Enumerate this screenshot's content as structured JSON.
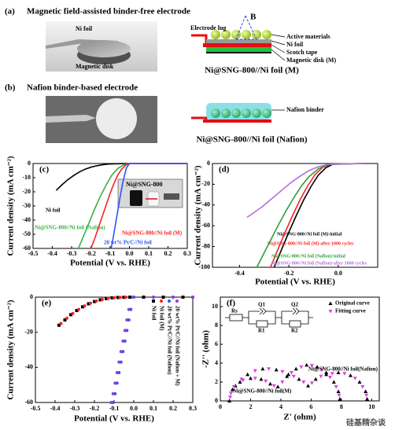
{
  "panel_a": {
    "label": "(a)",
    "title": "Magnetic field-assisted binder-free electrode",
    "photo_labels": [
      "Ni foil",
      "Magnetic disk"
    ],
    "diagram_labels": [
      "Electrode lug",
      "B",
      "Active materials",
      "Ni foil",
      "Scotch tape",
      "Magnetic disk (M)"
    ],
    "caption": "Ni@SNG-800//Ni foil (M)"
  },
  "panel_b": {
    "label": "(b)",
    "title": "Nafion binder-based electrode",
    "diagram_labels": [
      "Nafion binder"
    ],
    "caption": "Ni@SNG-800//Ni foil (Nafion)"
  },
  "watermark": "硅基精杂谈",
  "chart_data": [
    {
      "type": "line",
      "panel": "(c)",
      "x_label": "Potential (V vs. RHE)",
      "y_label": "Current density (mA cm⁻²)",
      "inset_label": "Ni@SNG-800",
      "xlim": [
        -0.5,
        0.3
      ],
      "xticks": [
        -0.5,
        -0.4,
        -0.3,
        -0.2,
        -0.1,
        {
          "value": 0,
          "label": "0.0"
        },
        0.1,
        0.2,
        0.3
      ],
      "ylim": [
        -60,
        0
      ],
      "yticks": [
        -60,
        -50,
        -40,
        -30,
        -20,
        -10,
        0
      ],
      "series": [
        {
          "name": "Ni foil",
          "color": "#000000",
          "x": [
            -0.38,
            -0.35,
            -0.32,
            -0.29,
            -0.26,
            -0.23,
            -0.2,
            -0.17,
            -0.14,
            -0.11,
            -0.08,
            -0.05,
            0,
            0.3
          ],
          "values": [
            -19,
            -15,
            -11.5,
            -8.5,
            -6,
            -4,
            -2.6,
            -1.6,
            -0.9,
            -0.4,
            -0.2,
            -0.1,
            0,
            0
          ]
        },
        {
          "name": "Ni@SNG-800//Ni foil (Nafion)",
          "color": "#3cb043",
          "x": [
            -0.265,
            -0.24,
            -0.21,
            -0.18,
            -0.15,
            -0.12,
            -0.09,
            -0.06,
            -0.03,
            0,
            0.3
          ],
          "values": [
            -60,
            -52,
            -42,
            -32,
            -23,
            -15,
            -8,
            -3.5,
            -1,
            0,
            0
          ]
        },
        {
          "name": "Ni@SNG-800//Ni foil (M)",
          "color": "#ff2020",
          "x": [
            -0.2,
            -0.18,
            -0.16,
            -0.14,
            -0.12,
            -0.1,
            -0.08,
            -0.06,
            -0.04,
            -0.02,
            0,
            0.3
          ],
          "values": [
            -60,
            -53,
            -45,
            -37,
            -29,
            -21,
            -14,
            -8,
            -4,
            -1.2,
            0,
            0
          ]
        },
        {
          "name": "20 wt% Pt/C//Ni foil",
          "color": "#3050ff",
          "x": [
            -0.095,
            -0.085,
            -0.075,
            -0.065,
            -0.055,
            -0.045,
            -0.035,
            -0.025,
            -0.015,
            0,
            0.3
          ],
          "values": [
            -60,
            -53,
            -45,
            -37,
            -29,
            -21,
            -14,
            -8,
            -3,
            0,
            0
          ]
        }
      ]
    },
    {
      "type": "line",
      "panel": "(d)",
      "x_label": "Potential (V vs. RHE)",
      "y_label": "Current density (mA cm⁻²)",
      "xlim": [
        -0.51,
        0.16
      ],
      "xticks": [
        -0.4,
        -0.2,
        {
          "value": 0,
          "label": "0.0"
        }
      ],
      "ylim": [
        -100,
        0
      ],
      "yticks": [
        -100,
        -80,
        -60,
        -40,
        -20,
        0
      ],
      "series": [
        {
          "name": "Ni@SNG-800//Ni foil (M)-initial",
          "color": "#000000",
          "x": [
            -0.26,
            -0.23,
            -0.2,
            -0.17,
            -0.14,
            -0.11,
            -0.08,
            -0.05,
            -0.02,
            0.1
          ],
          "values": [
            -100,
            -83,
            -66,
            -50,
            -35,
            -22,
            -11,
            -4,
            -0.5,
            0
          ]
        },
        {
          "name": "Ni@SNG-800//Ni foil (M)-after 1000 cycles",
          "color": "#ff2020",
          "x": [
            -0.275,
            -0.245,
            -0.215,
            -0.185,
            -0.155,
            -0.125,
            -0.095,
            -0.065,
            -0.03,
            0.1
          ],
          "values": [
            -100,
            -83,
            -66,
            -50,
            -35,
            -22,
            -11,
            -4,
            -0.5,
            0
          ]
        },
        {
          "name": "Ni@SNG-800//Ni foil (Nafion)-initial",
          "color": "#2e9e3e",
          "x": [
            -0.33,
            -0.3,
            -0.27,
            -0.24,
            -0.21,
            -0.18,
            -0.15,
            -0.12,
            -0.08,
            -0.04,
            0.1
          ],
          "values": [
            -100,
            -86,
            -72,
            -58,
            -45,
            -33,
            -22,
            -13,
            -5,
            -1,
            0
          ]
        },
        {
          "name": "Ni@SNG-800//Ni foil (Nafion)-after 1000 cycles",
          "color": "#b070e0",
          "x": [
            -0.37,
            -0.34,
            -0.31,
            -0.28,
            -0.25,
            -0.22,
            -0.19,
            -0.16,
            -0.12,
            -0.08,
            -0.04,
            0.1
          ],
          "values": [
            -52,
            -47,
            -42,
            -36,
            -30,
            -24,
            -18,
            -13,
            -7,
            -3,
            -0.8,
            0
          ]
        }
      ]
    },
    {
      "type": "scatter",
      "panel": "(e)",
      "x_label": "Potential (V vs. RHE)",
      "y_label": "Current density (mA cm⁻²)",
      "xlim": [
        -0.5,
        0.3
      ],
      "xticks": [
        -0.5,
        -0.4,
        -0.3,
        -0.2,
        -0.1,
        {
          "value": 0,
          "label": "0.0"
        },
        0.1,
        0.2,
        0.3
      ],
      "ylim": [
        -60,
        0
      ],
      "yticks": [
        -60,
        -40,
        -20,
        0
      ],
      "series": [
        {
          "name": "Ni foil",
          "color": "#000000",
          "marker": "square",
          "x": [
            -0.38,
            -0.35,
            -0.32,
            -0.29,
            -0.26,
            -0.23,
            -0.2,
            -0.17,
            -0.14,
            -0.11,
            -0.08,
            -0.05,
            -0.02,
            0.05,
            0.15,
            0.25
          ],
          "values": [
            -16,
            -13,
            -10,
            -7.6,
            -5.5,
            -3.8,
            -2.5,
            -1.5,
            -0.8,
            -0.4,
            -0.2,
            -0.1,
            0,
            0,
            0,
            0
          ]
        },
        {
          "name": "Ni foil (M)",
          "color": "#ff2020",
          "marker": "circle",
          "x": [
            -0.37,
            -0.34,
            -0.31,
            -0.28,
            -0.25,
            -0.22,
            -0.19,
            -0.16,
            -0.13,
            -0.1,
            -0.07,
            -0.04,
            0,
            0.1,
            0.2,
            0.3
          ],
          "values": [
            -15,
            -12,
            -9.3,
            -7,
            -5,
            -3.4,
            -2.2,
            -1.3,
            -0.7,
            -0.35,
            -0.15,
            -0.05,
            0,
            0,
            0,
            0
          ]
        },
        {
          "name": "20 wt% Pt/C//Ni foil (Nafion)",
          "color": "#3050ff",
          "marker": "circle",
          "x": [
            -0.105,
            -0.095,
            -0.085,
            -0.075,
            -0.065,
            -0.055,
            -0.045,
            -0.035,
            -0.025,
            -0.015,
            0,
            0.1,
            0.2,
            0.3
          ],
          "values": [
            -60,
            -55,
            -49,
            -43,
            -37,
            -31,
            -25,
            -19,
            -13,
            -7,
            0,
            0,
            0,
            0
          ]
        },
        {
          "name": "20 wt% Pt/C//Ni foil (Nafion + M)",
          "color": "#9040d0",
          "marker": "circle",
          "x": [
            -0.115,
            -0.105,
            -0.095,
            -0.085,
            -0.075,
            -0.065,
            -0.055,
            -0.045,
            -0.035,
            -0.025,
            -0.005,
            0.1,
            0.2,
            0.3
          ],
          "values": [
            -60,
            -55,
            -49,
            -43,
            -37,
            -31,
            -25,
            -19,
            -13,
            -7,
            0,
            0,
            0,
            0
          ]
        }
      ]
    },
    {
      "type": "scatter",
      "panel": "(f)",
      "x_label": "Z' (ohm)",
      "y_label": "-Z'' (ohm)",
      "annotations": [
        "Ni@SNG-800//Ni foil(Nafion)",
        "Ni@SNG-800//Ni foil(M)"
      ],
      "circuit_labels": [
        "Rs",
        "Q1",
        "Q2",
        "R1",
        "R2"
      ],
      "xlim": [
        0,
        10.5
      ],
      "xticks": [
        0,
        2,
        4,
        6,
        8,
        10
      ],
      "ylim": [
        0,
        11
      ],
      "yticks": [
        0,
        2,
        4,
        6,
        8,
        10
      ],
      "series": [
        {
          "name": "Original curve",
          "color": "#000000",
          "marker": "triangle",
          "x": [
            0.6,
            0.8,
            1.3,
            2.0,
            2.7,
            3.3,
            3.8,
            4.4,
            5.0,
            5.7,
            6.4,
            7.0,
            7.5,
            7.8,
            7.9,
            0.6,
            1.0,
            1.8,
            2.8,
            3.7,
            4.5,
            5.2,
            5.8,
            6.3,
            7.0,
            7.8,
            8.6,
            9.2,
            9.6,
            9.7
          ],
          "values": [
            0,
            1.2,
            2.0,
            2.4,
            2.3,
            1.8,
            1.5,
            2.6,
            3.4,
            3.8,
            3.6,
            3.0,
            2.0,
            1.0,
            0.2,
            0,
            1.6,
            2.8,
            3.4,
            3.3,
            2.8,
            2.3,
            1.6,
            2.3,
            2.8,
            3.0,
            2.7,
            2.0,
            1.0,
            0.2
          ]
        },
        {
          "name": "Fitting curve",
          "color": "#e040e0",
          "marker": "triangle-down",
          "x": [
            0.65,
            0.9,
            1.5,
            2.3,
            3.0,
            3.55,
            4.1,
            4.7,
            5.35,
            6.05,
            6.7,
            7.25,
            7.65,
            7.85,
            0.7,
            1.4,
            2.3,
            3.2,
            4.1,
            4.85,
            5.5,
            6.05,
            6.65,
            7.4,
            8.2,
            8.9,
            9.4,
            9.65
          ],
          "values": [
            0.4,
            1.5,
            2.2,
            2.4,
            2.1,
            1.6,
            2.0,
            3.0,
            3.6,
            3.75,
            3.3,
            2.5,
            1.5,
            0.6,
            0.8,
            2.3,
            3.2,
            3.4,
            3.1,
            2.6,
            2.0,
            1.9,
            2.6,
            2.9,
            2.9,
            2.4,
            1.5,
            0.6
          ]
        }
      ]
    }
  ]
}
